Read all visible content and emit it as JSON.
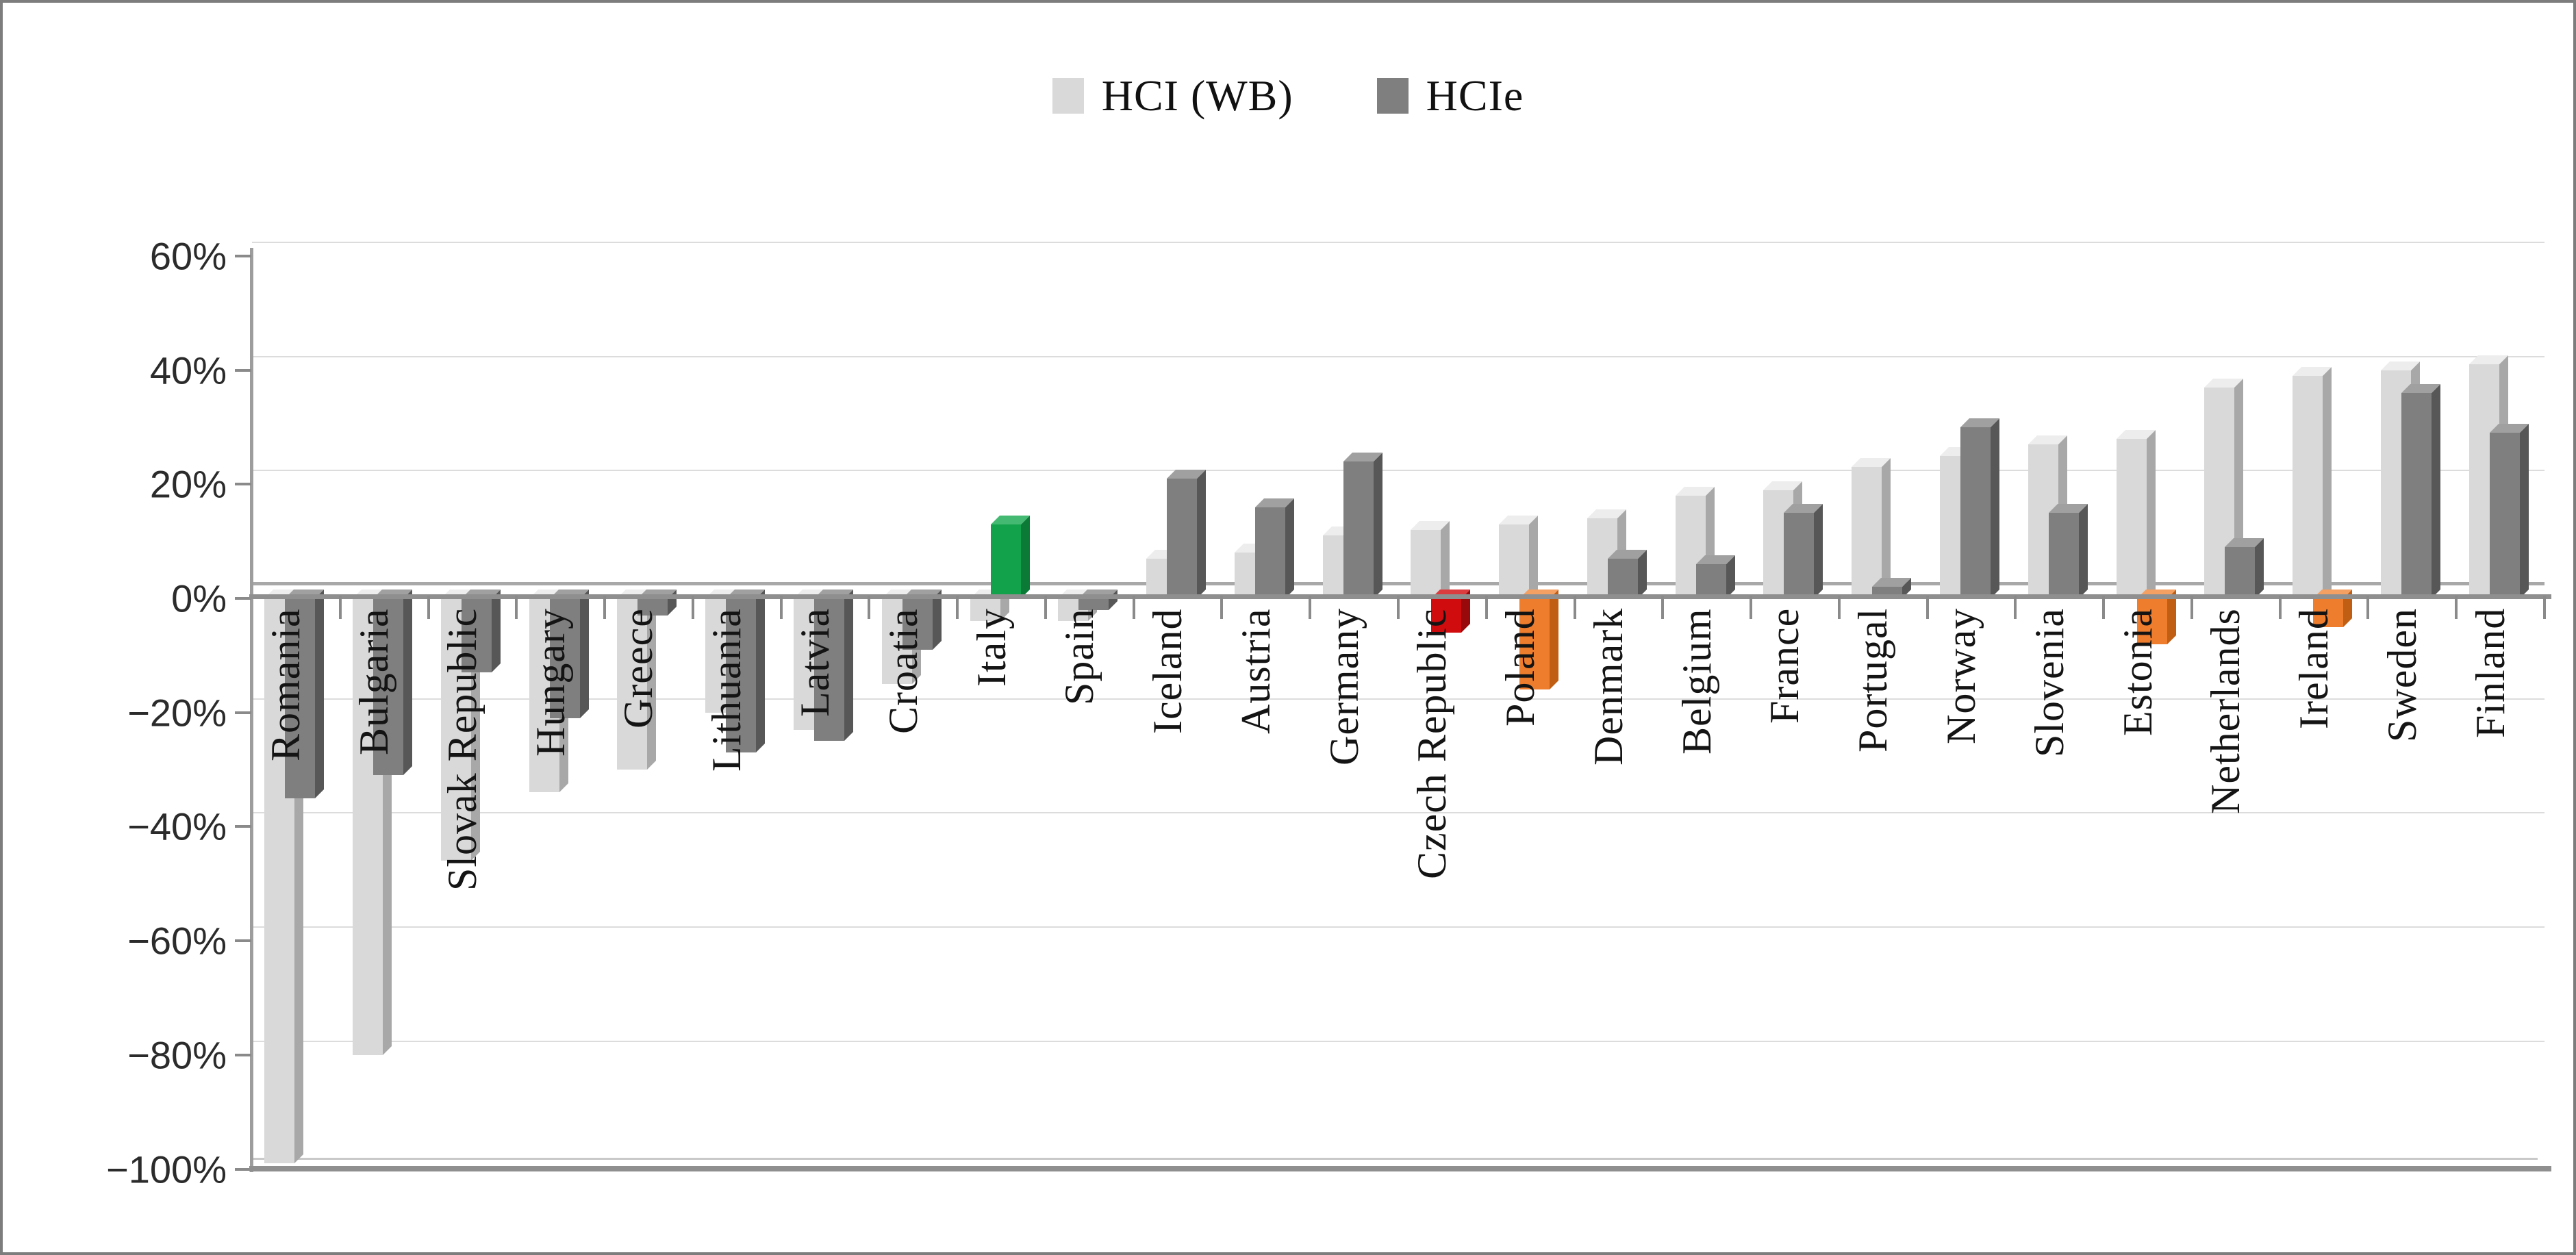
{
  "legend": [
    {
      "label": "HCI (WB)",
      "color": "#d9d9d9"
    },
    {
      "label": "HCIe",
      "color": "#7f7f7f"
    }
  ],
  "y_axis": {
    "tick_labels": [
      "60%",
      "40%",
      "20%",
      "0%",
      "−20%",
      "−40%",
      "−60%",
      "−80%",
      "−100%"
    ],
    "tick_values": [
      60,
      40,
      20,
      0,
      -20,
      -40,
      -60,
      -80,
      -100
    ]
  },
  "chart_data": {
    "type": "bar",
    "title": "",
    "xlabel": "",
    "ylabel": "",
    "ylim": [
      -100,
      60
    ],
    "ytick_step": 20,
    "grid": true,
    "legend_position": "top",
    "categories": [
      "Romania",
      "Bulgaria",
      "Slovak Republic",
      "Hungary",
      "Greece",
      "Lithuania",
      "Latvia",
      "Croatia",
      "Italy",
      "Spain",
      "Iceland",
      "Austria",
      "Germany",
      "Czech Republic",
      "Poland",
      "Denmark",
      "Belgium",
      "France",
      "Portugal",
      "Norway",
      "Slovenia",
      "Estonia",
      "Netherlands",
      "Ireland",
      "Sweden",
      "Finland"
    ],
    "series": [
      {
        "name": "HCI (WB)",
        "values": [
          -99,
          -80,
          -46,
          -34,
          -30,
          -20,
          -23,
          -15,
          -4,
          -4,
          7,
          8,
          11,
          12,
          13,
          14,
          18,
          19,
          23,
          25,
          27,
          28,
          37,
          39,
          40,
          41
        ]
      },
      {
        "name": "HCIe",
        "values": [
          -35,
          -31,
          -13,
          -21,
          -3,
          -27,
          -25,
          -9,
          13,
          -2,
          21,
          16,
          24,
          -6,
          -16,
          7,
          6,
          15,
          2,
          30,
          15,
          -8,
          9,
          -5,
          36,
          29
        ]
      }
    ],
    "highlighted_bars": [
      {
        "category": "Italy",
        "series": "HCIe",
        "color": "#12a24c"
      },
      {
        "category": "Czech Republic",
        "series": "HCIe",
        "color": "#d00c0f"
      },
      {
        "category": "Poland",
        "series": "HCIe",
        "color": "#ee7d2e"
      },
      {
        "category": "Estonia",
        "series": "HCIe",
        "color": "#ee7d2e"
      },
      {
        "category": "Ireland",
        "series": "HCIe",
        "color": "#ee7d2e"
      }
    ]
  },
  "colors": {
    "series": {
      "HCI (WB)": {
        "front": "#d9d9d9",
        "side": "#a8a8a8",
        "top": "#ededed"
      },
      "HCIe": {
        "front": "#7f7f7f",
        "side": "#575757",
        "top": "#a0a0a0"
      }
    },
    "highlight_shades": {
      "#12a24c": {
        "front": "#12a24c",
        "side": "#0c7a37",
        "top": "#44b971"
      },
      "#d00c0f": {
        "front": "#d00c0f",
        "side": "#98090b",
        "top": "#dc3c3e"
      },
      "#ee7d2e": {
        "front": "#ee7d2e",
        "side": "#c05e14",
        "top": "#f4a062"
      }
    },
    "gridline": "#dcdcdc",
    "axis": "#9d9d9d"
  }
}
